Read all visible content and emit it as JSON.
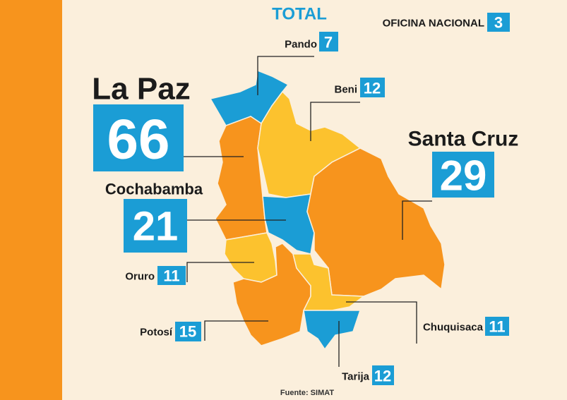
{
  "title": "TOTAL",
  "national_office": {
    "label": "OFICINA NACIONAL",
    "value": 3
  },
  "regions": [
    {
      "name": "Pando",
      "value": 7
    },
    {
      "name": "Beni",
      "value": 12
    },
    {
      "name": "La Paz",
      "value": 66
    },
    {
      "name": "Santa Cruz",
      "value": 29
    },
    {
      "name": "Cochabamba",
      "value": 21
    },
    {
      "name": "Oruro",
      "value": 11
    },
    {
      "name": "Potosí",
      "value": 15
    },
    {
      "name": "Chuquisaca",
      "value": 11
    },
    {
      "name": "Tarija",
      "value": 12
    }
  ],
  "source": "Fuente: SIMAT"
}
